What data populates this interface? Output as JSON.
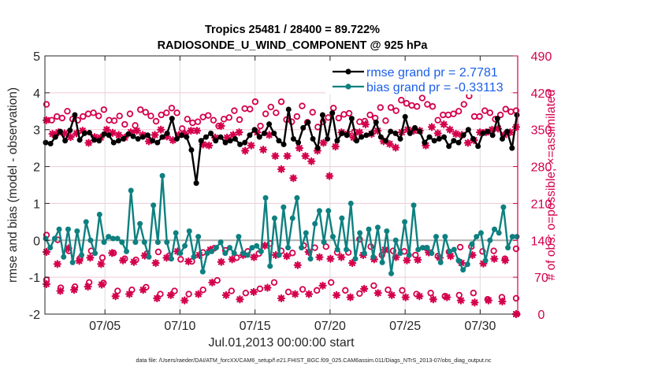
{
  "chart_data": {
    "type": "line",
    "title_lines": [
      "Tropics 25481 / 28400 = 89.722%",
      "RADIOSONDE_U_WIND_COMPONENT @ 925 hPa"
    ],
    "xlabel": "Jul.01,2013 00:00:00 start",
    "ylabel": "rmse and bias (model - observation)",
    "y2label": "# of obs: o=possible; ×=assimilated",
    "footer": "data file: /Users/raeder/DAI/ATM_forcXX/CAM6_setup/f.e21.FHIST_BGC.f09_025.CAM6assim.011/Diags_NTrS_2013-07/obs_diag_output.nc",
    "xlim_days": [
      0,
      31.5
    ],
    "ylim": [
      -2,
      5
    ],
    "y2lim": [
      0,
      490
    ],
    "x_ticks": [
      {
        "day": 4,
        "label": "07/05"
      },
      {
        "day": 9,
        "label": "07/10"
      },
      {
        "day": 14,
        "label": "07/15"
      },
      {
        "day": 19,
        "label": "07/20"
      },
      {
        "day": 24,
        "label": "07/25"
      },
      {
        "day": 29,
        "label": "07/30"
      }
    ],
    "y_ticks": [
      "-2",
      "-1",
      "0",
      "1",
      "2",
      "3",
      "4",
      "5"
    ],
    "y2_ticks": [
      "0",
      "70",
      "140",
      "210",
      "280",
      "350",
      "420",
      "490"
    ],
    "grid": true,
    "zero_line": true,
    "legend": {
      "placement": "top-right",
      "entries": [
        {
          "label": "rmse grand pr = 2.7781",
          "color": "#000000"
        },
        {
          "label": "bias grand pr = -0.33113",
          "color": "#0e8080"
        }
      ]
    },
    "colors": {
      "rmse": "#000000",
      "bias": "#0e8080",
      "counts": "#d4004c",
      "grid": "#f0c8d4",
      "zero_line": "#b0b0b0"
    },
    "time_step_days": 0.5,
    "series": [
      {
        "name": "rmse",
        "axis": "left",
        "values": [
          2.65,
          2.62,
          2.8,
          2.95,
          2.7,
          2.98,
          3.4,
          2.72,
          2.9,
          2.92,
          2.72,
          2.7,
          2.88,
          2.85,
          2.65,
          2.7,
          2.75,
          2.88,
          2.82,
          2.75,
          2.8,
          2.85,
          2.7,
          2.65,
          2.8,
          2.9,
          3.3,
          2.75,
          2.85,
          2.8,
          2.45,
          1.55,
          2.7,
          2.8,
          2.9,
          2.7,
          2.8,
          2.65,
          2.7,
          2.75,
          2.6,
          2.65,
          2.85,
          3.0,
          2.8,
          2.9,
          3.15,
          2.9,
          2.7,
          2.6,
          3.55,
          2.75,
          2.65,
          3.05,
          3.2,
          2.75,
          2.5,
          3.4,
          2.75,
          3.45,
          2.7,
          2.9,
          2.85,
          3.3,
          2.7,
          2.8,
          2.85,
          2.9,
          3.2,
          2.8,
          2.7,
          2.95,
          2.9,
          2.75,
          3.35,
          2.9,
          3.05,
          2.95,
          2.65,
          2.8,
          2.7,
          2.75,
          2.8,
          2.55,
          2.7,
          2.65,
          2.85,
          3.0,
          2.75,
          2.55,
          2.9,
          2.95,
          2.85,
          3.3,
          2.75,
          2.95,
          2.5,
          3.4
        ],
        "note": "approximate, read off gridlines; black line with filled circle markers"
      },
      {
        "name": "bias",
        "axis": "left",
        "values": [
          0.05,
          -0.2,
          0.05,
          0.3,
          -0.45,
          0.3,
          -0.6,
          0.25,
          -0.4,
          0.5,
          0.0,
          -0.35,
          0.7,
          -0.05,
          0.1,
          0.05,
          0.05,
          -0.05,
          -0.3,
          1.35,
          -0.05,
          0.45,
          -0.05,
          -0.45,
          0.95,
          -0.05,
          1.75,
          -0.05,
          -0.5,
          0.2,
          -0.35,
          -0.15,
          0.25,
          -0.45,
          0.1,
          -0.85,
          -0.35,
          -0.3,
          -0.2,
          -0.05,
          -0.35,
          -0.2,
          -0.35,
          0.1,
          -0.35,
          -0.4,
          -0.2,
          -0.15,
          -0.3,
          1.15,
          -0.7,
          0.6,
          -0.4,
          0.9,
          -0.2,
          0.6,
          1.15,
          -0.2,
          0.2,
          -0.5,
          0.45,
          0.8,
          -0.05,
          0.8,
          0.1,
          -0.25,
          0.6,
          -0.25,
          1.0,
          -0.5,
          0.2,
          -0.35,
          0.3,
          -0.45,
          0.35,
          -0.6,
          0.25,
          -0.9,
          0.0,
          -0.35,
          0.5,
          -0.4,
          0.95,
          -0.25,
          -0.2,
          -0.2,
          -0.35,
          0.1,
          -0.6,
          0.1,
          -0.3,
          -0.25,
          -0.55,
          -0.8,
          -0.65,
          -0.1,
          0.1,
          0.2,
          -0.55,
          0.0,
          0.3,
          0.2,
          0.9,
          -0.2,
          0.1,
          0.1
        ],
        "note": "approximate; teal line with filled circle markers"
      },
      {
        "name": "obs_possible_high",
        "axis": "right",
        "marker": "o",
        "values": [
          398,
          368,
          375,
          372,
          385,
          370,
          368,
          375,
          380,
          382,
          376,
          388,
          368,
          367,
          376,
          360,
          380,
          358,
          388,
          383,
          376,
          366,
          378,
          382,
          391,
          382,
          352,
          370,
          363,
          365,
          374,
          377,
          368,
          357,
          370,
          373,
          386,
          369,
          390,
          389,
          403,
          357,
          380,
          393,
          382,
          403,
          369,
          365,
          375,
          395,
          364,
          383,
          355,
          365,
          373,
          391,
          372,
          379,
          381,
          346,
          365,
          366,
          378,
          372,
          392,
          367,
          392,
          386,
          406,
          400,
          396,
          394,
          410,
          398,
          394,
          368,
          378,
          378,
          380,
          385,
          398,
          414,
          375,
          375,
          386,
          382,
          370,
          378,
          389,
          384,
          386
        ],
        "note": "approximate daily-ish counts of possible obs at 12Z (upper cluster)"
      },
      {
        "name": "obs_assimilated_high",
        "axis": "right",
        "marker": "*",
        "values": [
          368,
          342,
          345,
          343,
          336,
          343,
          348,
          325,
          336,
          335,
          350,
          344,
          340,
          335,
          345,
          348,
          340,
          328,
          340,
          350,
          337,
          330,
          340,
          342,
          348,
          348,
          322,
          320,
          335,
          357,
          335,
          340,
          345,
          310,
          320,
          345,
          312,
          340,
          300,
          275,
          300,
          258,
          315,
          300,
          290,
          310,
          325,
          262,
          318,
          345,
          342,
          335,
          345,
          360,
          342,
          348,
          328,
          323,
          316,
          345,
          350,
          348,
          348,
          320,
          355,
          343,
          360,
          350,
          342,
          340,
          325,
          330,
          345,
          345,
          350,
          352,
          340,
          345,
          355
        ],
        "note": "approximate counts of assimilated obs (upper cluster)"
      },
      {
        "name": "obs_possible_low",
        "axis": "right",
        "marker": "o",
        "values": [
          150,
          141,
          120,
          106,
          120,
          107,
          116,
          105,
          103,
          115,
          118,
          111,
          104,
          100,
          117,
          125,
          121,
          107,
          119,
          115,
          134,
          120,
          116,
          130,
          126,
          128,
          117,
          117,
          142,
          128,
          112,
          120,
          119,
          112,
          125,
          110,
          118,
          127,
          128,
          119,
          120,
          105,
          124
        ],
        "note": "approximate counts of possible obs at 00Z (lower cluster)"
      },
      {
        "name": "obs_assimilated_low",
        "axis": "right",
        "marker": "*",
        "values": [
          118,
          95,
          125,
          101,
          107,
          95,
          116,
          102,
          99,
          111,
          97,
          107,
          119,
          100,
          112,
          122,
          99,
          104,
          112,
          108,
          130,
          112,
          110,
          93,
          118,
          108,
          105,
          108,
          97,
          112,
          104,
          122,
          108,
          102,
          103,
          117,
          107,
          110,
          97,
          112,
          96,
          105,
          102,
          0
        ],
        "note": "approximate counts of assimilated obs at 00Z (lower cluster)"
      },
      {
        "name": "obs_possible_bottom",
        "axis": "right",
        "marker": "o",
        "values": [
          65,
          50,
          52,
          60,
          59,
          44,
          46,
          51,
          38,
          44,
          38,
          46,
          64,
          44,
          40,
          48,
          60,
          42,
          47,
          45,
          60,
          45,
          39,
          54,
          46,
          45,
          38,
          40,
          34,
          36,
          40,
          28,
          32,
          30
        ],
        "note": "approximate counts at the lowest band"
      },
      {
        "name": "obs_assimilated_bottom",
        "axis": "right",
        "marker": "*",
        "values": [
          57,
          44,
          46,
          52,
          56,
          34,
          38,
          46,
          30,
          36,
          26,
          38,
          60,
          36,
          28,
          42,
          50,
          30,
          38,
          38,
          54,
          36,
          32,
          48,
          40,
          36,
          32,
          34,
          28,
          32,
          26,
          22,
          26,
          24,
          0
        ],
        "note": "approximate counts at the lowest band"
      }
    ]
  }
}
